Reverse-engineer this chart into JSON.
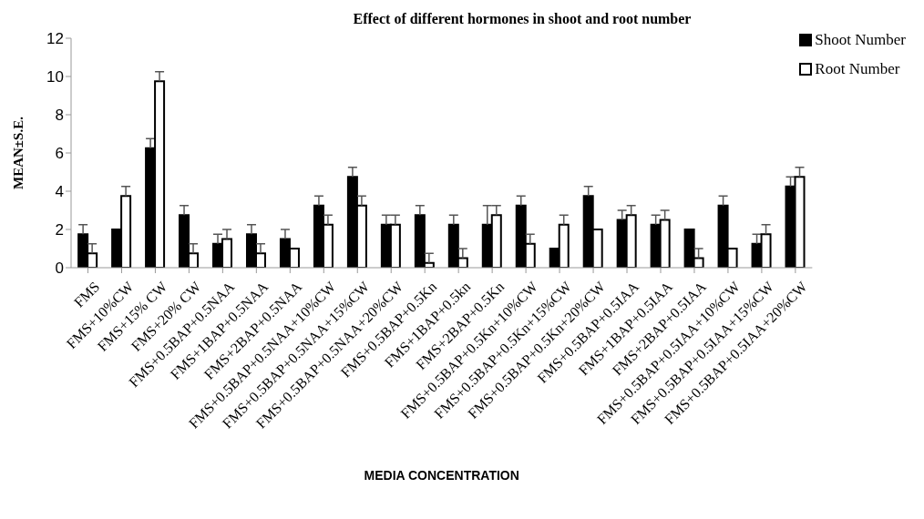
{
  "chart_data": {
    "type": "bar",
    "title": "Effect of different hormones in shoot and root number",
    "xlabel": "MEDIA CONCENTRATION",
    "ylabel": "MEAN±S.E.",
    "categories": [
      "FMS",
      "FMS+10%CW",
      "FMS+15% CW",
      "FMS+20% CW",
      "FMS+0.5BAP+0.5NAA",
      "FMS+1BAP+0.5NAA",
      "FMS+2BAP+0.5NAA",
      "FMS+0.5BAP+0.5NAA+10%CW",
      "FMS+0.5BAP+0.5NAA+15%CW",
      "FMS+0.5BAP+0.5NAA+20%CW",
      "FMS+0.5BAP+0.5Kn",
      "FMS+1BAP+0.5kn",
      "FMS+2BAP+0.5Kn",
      "FMS+0.5BAP+0.5Kn+10%CW",
      "FMS+0.5BAP+0.5Kn+15%CW",
      "FMS+0.5BAP+0.5Kn+20%CW",
      "FMS+0.5BAP+0.5IAA",
      "FMS+1BAP+0.5IAA",
      "FMS+2BAP+0.5IAA",
      "FMS+0.5BAP+0.5IAA+10%CW",
      "FMS+0.5BAP+0.5IAA+15%CW",
      "FMS+0.5BAP+0.5IAA+20%CW"
    ],
    "series": [
      {
        "name": "Shoot Number",
        "color": "#000000",
        "values": [
          1.75,
          2,
          6.25,
          2.75,
          1.25,
          1.75,
          1.5,
          3.25,
          4.75,
          2.25,
          2.75,
          2.25,
          2.25,
          3.25,
          1,
          3.75,
          2.5,
          2.25,
          2,
          3.25,
          1.25,
          4.25
        ],
        "errors": [
          [
            1.75,
            2.25
          ],
          null,
          [
            6.25,
            6.75
          ],
          [
            2.75,
            3.25
          ],
          [
            1.25,
            1.75
          ],
          [
            1.75,
            2.25
          ],
          [
            1.5,
            2
          ],
          [
            3.25,
            3.75
          ],
          [
            4.75,
            5.25
          ],
          [
            2.25,
            2.75
          ],
          [
            2.75,
            3.25
          ],
          [
            2.25,
            2.75
          ],
          [
            2.25,
            3.25
          ],
          [
            3.25,
            3.75
          ],
          null,
          [
            3.75,
            4.25
          ],
          [
            2.5,
            3
          ],
          [
            2.25,
            2.75
          ],
          null,
          [
            3.25,
            3.75
          ],
          [
            1.25,
            1.75
          ],
          [
            4.25,
            4.75
          ]
        ]
      },
      {
        "name": "Root Number",
        "color": "#ffffff",
        "values": [
          0.75,
          3.75,
          9.75,
          0.75,
          1.5,
          0.75,
          1,
          2.25,
          3.25,
          2.25,
          0.25,
          0.5,
          2.75,
          1.25,
          2.25,
          2,
          2.75,
          2.5,
          0.5,
          1,
          1.75,
          4.75
        ],
        "errors": [
          [
            0.75,
            1.25
          ],
          [
            3.75,
            4.25
          ],
          [
            9.75,
            10.25
          ],
          [
            0.75,
            1.25
          ],
          [
            1.5,
            2
          ],
          [
            0.75,
            1.25
          ],
          null,
          [
            2.25,
            2.75
          ],
          [
            3.25,
            3.75
          ],
          [
            2.25,
            2.75
          ],
          [
            0.25,
            0.75
          ],
          [
            0.5,
            1
          ],
          [
            2.75,
            3.25
          ],
          [
            1.25,
            1.75
          ],
          [
            2.25,
            2.75
          ],
          null,
          [
            2.75,
            3.25
          ],
          [
            2.5,
            3
          ],
          [
            0.5,
            1
          ],
          null,
          [
            1.75,
            2.25
          ],
          [
            4.75,
            5.25
          ]
        ]
      }
    ],
    "ylim": [
      0,
      12
    ],
    "yticks": [
      0,
      2,
      4,
      6,
      8,
      10,
      12
    ],
    "grid": false,
    "legend": "top right"
  }
}
